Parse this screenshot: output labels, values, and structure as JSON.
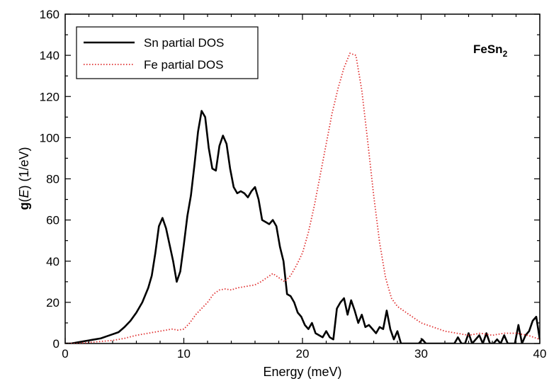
{
  "chart_data": {
    "type": "line",
    "title": "",
    "xlabel": "Energy (meV)",
    "ylabel_bold": "g",
    "ylabel_italic": "E",
    "ylabel_open": "(",
    "ylabel_rest": ") (1/eV)",
    "xlim": [
      0,
      40
    ],
    "ylim": [
      0,
      160
    ],
    "xticks": [
      "0",
      "10",
      "20",
      "30",
      "40"
    ],
    "yticks": [
      "0",
      "20",
      "40",
      "60",
      "80",
      "100",
      "120",
      "140",
      "160"
    ],
    "grid": false,
    "legend_position": "top-left",
    "annotation": {
      "main": "FeSn",
      "sub": "2"
    },
    "series": [
      {
        "name": "Sn partial DOS",
        "color": "#000000",
        "style": "solid",
        "x": [
          0,
          0.5,
          1,
          1.5,
          2,
          2.5,
          3,
          3.5,
          4,
          4.5,
          5,
          5.5,
          6,
          6.5,
          7,
          7.3,
          7.6,
          7.9,
          8.2,
          8.5,
          8.8,
          9.1,
          9.4,
          9.7,
          10.0,
          10.3,
          10.6,
          10.9,
          11.2,
          11.5,
          11.8,
          12.1,
          12.4,
          12.7,
          13.0,
          13.3,
          13.6,
          13.9,
          14.2,
          14.5,
          14.8,
          15.1,
          15.4,
          15.7,
          16.0,
          16.3,
          16.6,
          16.9,
          17.2,
          17.5,
          17.8,
          18.1,
          18.4,
          18.7,
          19.0,
          19.3,
          19.6,
          19.9,
          20.2,
          20.5,
          20.8,
          21.1,
          21.4,
          21.7,
          22.0,
          22.3,
          22.6,
          22.9,
          23.2,
          23.5,
          23.8,
          24.1,
          24.4,
          24.7,
          25.0,
          25.3,
          25.6,
          25.9,
          26.2,
          26.5,
          26.8,
          27.1,
          27.4,
          27.7,
          28.0,
          28.3,
          28.6,
          28.9,
          29.2,
          29.5,
          29.8,
          30.1,
          30.4,
          30.7,
          31.0,
          31.3,
          31.6,
          31.9,
          32.2,
          32.5,
          32.8,
          33.1,
          33.4,
          33.7,
          34.0,
          34.3,
          34.6,
          34.9,
          35.2,
          35.5,
          35.8,
          36.1,
          36.4,
          36.7,
          37.0,
          37.3,
          37.6,
          37.9,
          38.2,
          38.5,
          38.8,
          39.1,
          39.4,
          39.7,
          40.0
        ],
        "y": [
          0,
          0,
          0.5,
          1,
          1.5,
          2,
          2.5,
          3.5,
          4.5,
          5.5,
          8,
          11,
          15,
          20,
          27,
          33,
          44,
          57,
          61,
          56,
          48,
          40,
          30,
          35,
          48,
          62,
          72,
          87,
          103,
          113,
          110,
          95,
          85,
          84,
          96,
          101,
          97,
          85,
          76,
          73,
          74,
          73,
          71,
          74,
          76,
          70,
          60,
          59,
          58,
          60,
          57,
          47,
          40,
          24,
          23,
          20,
          15,
          13,
          9,
          7,
          10,
          5,
          4,
          3,
          6,
          3,
          2,
          17,
          20,
          22,
          14,
          21,
          16,
          10,
          14,
          8,
          9,
          7,
          5,
          8,
          7,
          16,
          7,
          2,
          6,
          0,
          0,
          0,
          0,
          0,
          0,
          2,
          0,
          0,
          0,
          0,
          0,
          0,
          0,
          0,
          0,
          3,
          0,
          0,
          5,
          0,
          2,
          4,
          0,
          5,
          0,
          0,
          2,
          0,
          4,
          0,
          0,
          0,
          9,
          0,
          4,
          6,
          11,
          13,
          2
        ]
      },
      {
        "name": "Fe partial DOS",
        "color": "#e03030",
        "style": "dotted",
        "x": [
          0,
          1,
          2,
          3,
          4,
          5,
          6,
          7,
          8,
          9,
          9.5,
          10,
          10.5,
          11,
          11.5,
          12,
          12.5,
          13,
          13.5,
          14,
          14.5,
          15,
          15.5,
          16,
          16.5,
          17,
          17.5,
          18,
          18.5,
          19,
          19.5,
          20,
          20.5,
          21,
          21.5,
          22,
          22.5,
          23,
          23.5,
          24,
          24.5,
          25,
          25.5,
          26,
          26.5,
          27,
          27.5,
          28,
          28.5,
          29,
          29.5,
          30,
          31,
          32,
          33,
          34,
          35,
          36,
          37,
          38,
          39,
          40
        ],
        "y": [
          0,
          0,
          0.5,
          1,
          1.5,
          2.5,
          4,
          5,
          6,
          7,
          6.5,
          7,
          10,
          14,
          17,
          20,
          24,
          26,
          26.5,
          26,
          27,
          27.5,
          28,
          28.5,
          30,
          32,
          34,
          32,
          30,
          33,
          38,
          44,
          54,
          67,
          82,
          97,
          112,
          124,
          134,
          141,
          140,
          123,
          98,
          72,
          49,
          32,
          22,
          18,
          16,
          14,
          12,
          10,
          8,
          6,
          5,
          4,
          5,
          4,
          5,
          5,
          4,
          2
        ]
      }
    ]
  }
}
